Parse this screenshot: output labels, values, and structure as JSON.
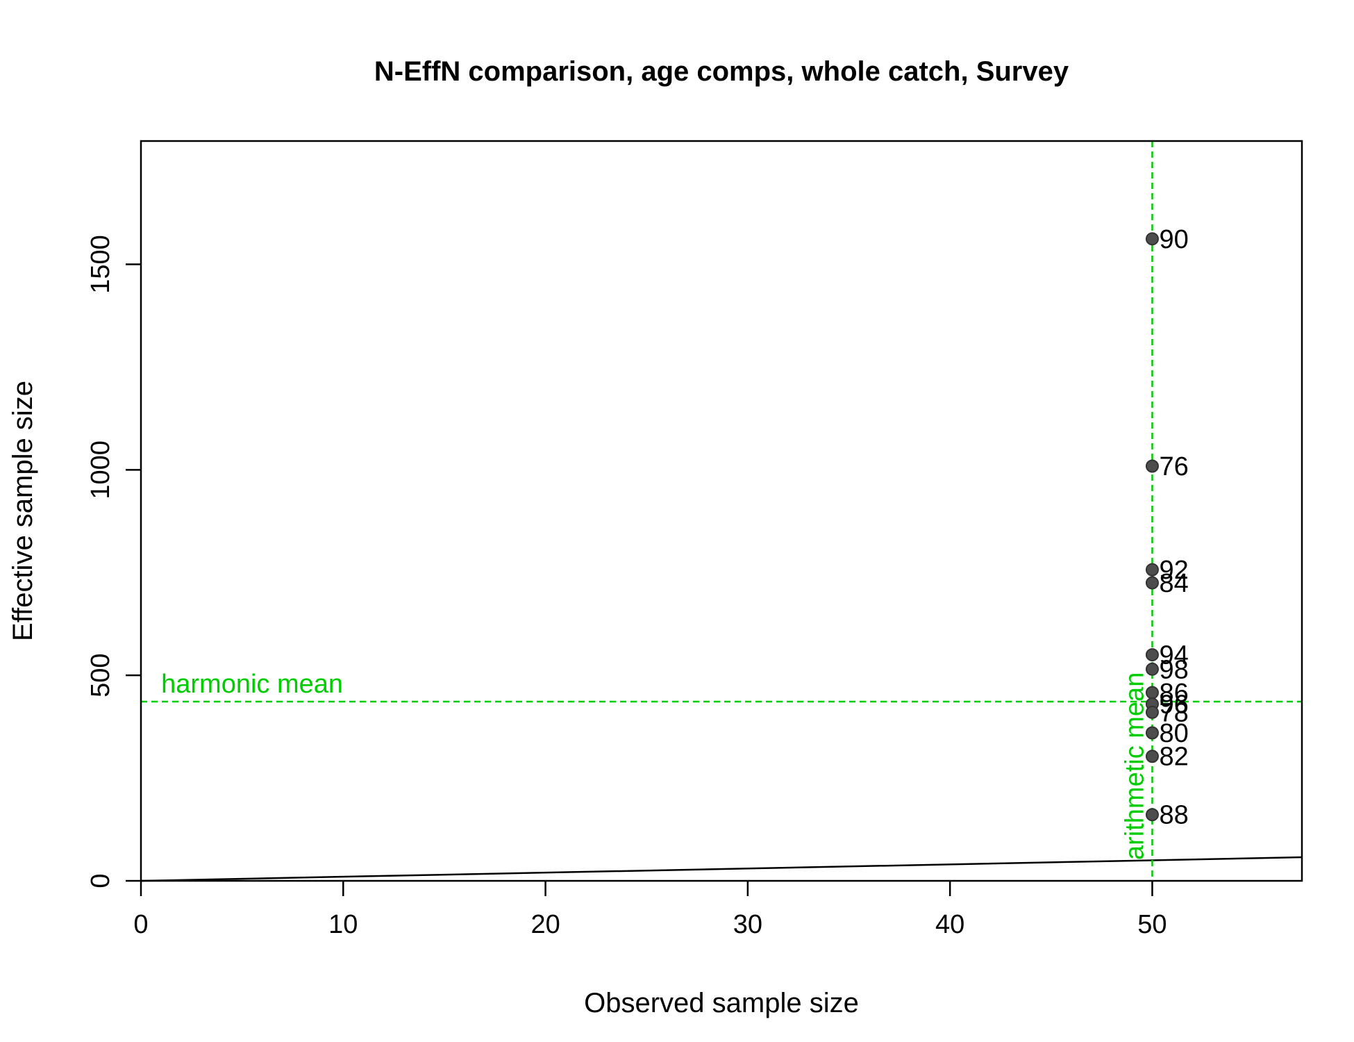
{
  "chart_data": {
    "type": "scatter",
    "title": "N-EffN comparison, age comps, whole catch, Survey",
    "xlabel": "Observed sample size",
    "ylabel": "Effective sample size",
    "xlim": [
      0,
      57.4
    ],
    "ylim": [
      0,
      1800
    ],
    "xticks": [
      0,
      10,
      20,
      30,
      40,
      50
    ],
    "yticks": [
      0,
      500,
      1000,
      1500
    ],
    "grid": false,
    "points": [
      {
        "label": "90",
        "x": 50,
        "y": 1562
      },
      {
        "label": "76",
        "x": 50,
        "y": 1009
      },
      {
        "label": "92",
        "x": 50,
        "y": 757
      },
      {
        "label": "84",
        "x": 50,
        "y": 725
      },
      {
        "label": "94",
        "x": 50,
        "y": 550
      },
      {
        "label": "98",
        "x": 50,
        "y": 515
      },
      {
        "label": "86",
        "x": 50,
        "y": 458
      },
      {
        "label": "96",
        "x": 50,
        "y": 430
      },
      {
        "label": "78",
        "x": 50,
        "y": 410
      },
      {
        "label": "80",
        "x": 50,
        "y": 360
      },
      {
        "label": "82",
        "x": 50,
        "y": 303
      },
      {
        "label": "88",
        "x": 50,
        "y": 161
      }
    ],
    "reference_lines": {
      "one_to_one": {
        "slope": 1,
        "intercept": 0,
        "color": "#000000"
      },
      "harmonic_mean": {
        "label": "harmonic mean",
        "y": 436,
        "color": "#00cd00"
      },
      "arithmetic_mean": {
        "label": "arithmetic mean",
        "x": 50,
        "color": "#00cd00"
      }
    },
    "point_color": "#4d4d4d"
  }
}
